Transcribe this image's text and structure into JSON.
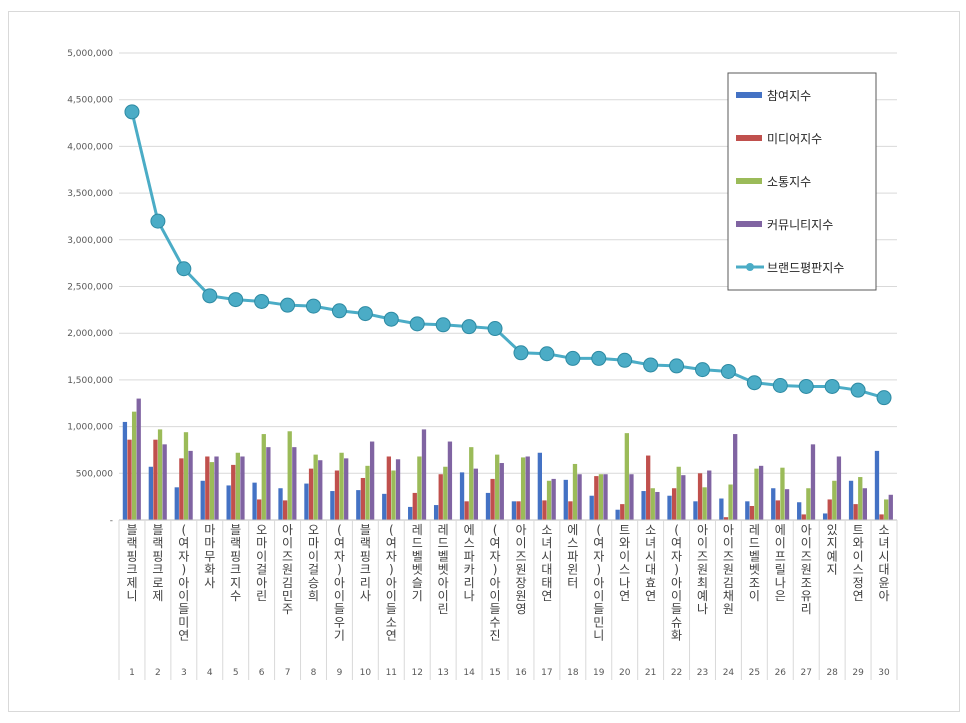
{
  "chart_data": {
    "type": "bar",
    "title": "",
    "xlabel": "",
    "ylabel": "",
    "ylim": [
      0,
      5000000
    ],
    "yticks": [
      "-",
      "500,000",
      "1,000,000",
      "1,500,000",
      "2,000,000",
      "2,500,000",
      "3,000,000",
      "3,500,000",
      "4,000,000",
      "4,500,000",
      "5,000,000"
    ],
    "grid": true,
    "legend_position": "top-right",
    "ranks": [
      "1",
      "2",
      "3",
      "4",
      "5",
      "6",
      "7",
      "8",
      "9",
      "10",
      "11",
      "12",
      "13",
      "14",
      "15",
      "16",
      "17",
      "18",
      "19",
      "20",
      "21",
      "22",
      "23",
      "24",
      "25",
      "26",
      "27",
      "28",
      "29",
      "30"
    ],
    "categories": [
      "블랙핑크제니",
      "블랙핑크로제",
      "(여자)아이들미연",
      "마마무화사",
      "블랙핑크지수",
      "오마이걸아린",
      "아이즈원김민주",
      "오마이걸승희",
      "(여자)아이들우기",
      "블랙핑크리사",
      "(여자)아이들소연",
      "레드벨벳슬기",
      "레드벨벳아이린",
      "에스파카리나",
      "(여자)아이들수진",
      "아이즈원장원영",
      "소녀시대태연",
      "에스파윈터",
      "(여자)아이들민니",
      "트와이스나연",
      "소녀시대효연",
      "(여자)아이들슈화",
      "아이즈원최예나",
      "아이즈원김채원",
      "레드벨벳조이",
      "에이프릴나은",
      "아이즈원조유리",
      "있지예지",
      "트와이스정연",
      "소녀시대윤아"
    ],
    "series": [
      {
        "name": "참여지수",
        "color": "#4472c4",
        "kind": "bar",
        "values": [
          1050000,
          570000,
          350000,
          420000,
          370000,
          400000,
          340000,
          390000,
          310000,
          320000,
          280000,
          140000,
          160000,
          510000,
          290000,
          200000,
          720000,
          430000,
          260000,
          110000,
          310000,
          260000,
          200000,
          230000,
          200000,
          340000,
          190000,
          70000,
          420000,
          740000
        ]
      },
      {
        "name": "미디어지수",
        "color": "#c0504d",
        "kind": "bar",
        "values": [
          860000,
          860000,
          660000,
          680000,
          590000,
          220000,
          210000,
          550000,
          530000,
          450000,
          680000,
          290000,
          490000,
          200000,
          440000,
          200000,
          210000,
          200000,
          470000,
          170000,
          690000,
          340000,
          500000,
          30000,
          150000,
          210000,
          60000,
          220000,
          170000,
          60000
        ]
      },
      {
        "name": "소통지수",
        "color": "#9bbb59",
        "kind": "bar",
        "values": [
          1160000,
          970000,
          940000,
          620000,
          720000,
          920000,
          950000,
          700000,
          720000,
          580000,
          530000,
          680000,
          570000,
          780000,
          700000,
          670000,
          420000,
          600000,
          490000,
          930000,
          340000,
          570000,
          350000,
          380000,
          550000,
          560000,
          340000,
          420000,
          460000,
          220000
        ]
      },
      {
        "name": "커뮤니티지수",
        "color": "#8064a2",
        "kind": "bar",
        "values": [
          1300000,
          810000,
          740000,
          680000,
          680000,
          780000,
          780000,
          640000,
          660000,
          840000,
          650000,
          970000,
          840000,
          550000,
          610000,
          680000,
          440000,
          490000,
          490000,
          490000,
          300000,
          480000,
          530000,
          920000,
          580000,
          330000,
          810000,
          680000,
          340000,
          270000
        ]
      },
      {
        "name": "브랜드평판지수",
        "color": "#4bacc6",
        "kind": "line",
        "values": [
          4370000,
          3200000,
          2690000,
          2400000,
          2360000,
          2340000,
          2300000,
          2290000,
          2240000,
          2210000,
          2150000,
          2100000,
          2090000,
          2070000,
          2050000,
          1790000,
          1780000,
          1730000,
          1730000,
          1710000,
          1660000,
          1650000,
          1610000,
          1590000,
          1470000,
          1440000,
          1430000,
          1430000,
          1390000,
          1310000
        ]
      }
    ]
  }
}
